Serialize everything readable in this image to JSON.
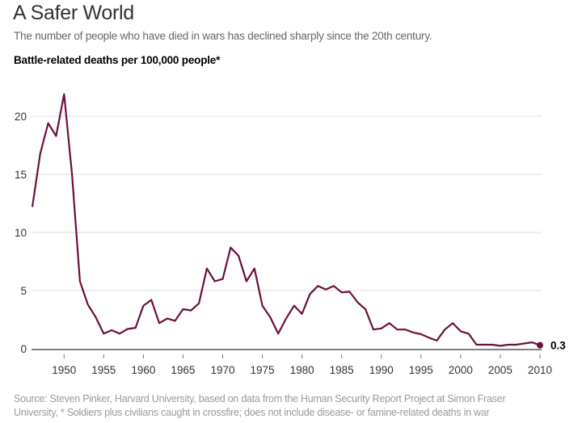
{
  "header": {
    "title": "A Safer World",
    "subtitle": "The number of people who have died in wars has declined sharply since the 20th century.",
    "measure_label": "Battle-related deaths per 100,000 people*"
  },
  "footer": {
    "source_line1": "Source: Steven Pinker, Harvard University, based on data from the Human Security Report Project at Simon Fraser",
    "source_line2": "University,  * Soldiers plus civilians caught in crossfire; does not include disease- or famine-related deaths in war"
  },
  "colors": {
    "line": "#6b0f3f",
    "grid": "#e8e8e8",
    "axis": "#555555"
  },
  "chart_data": {
    "type": "line",
    "title": "A Safer World",
    "subtitle": "The number of people who have died in wars has declined sharply since the 20th century.",
    "xlabel": "",
    "ylabel": "Battle-related deaths per 100,000 people*",
    "xlim": [
      1946,
      2010
    ],
    "ylim": [
      0,
      22
    ],
    "grid": true,
    "x_ticks": [
      1950,
      1955,
      1960,
      1965,
      1970,
      1975,
      1980,
      1985,
      1990,
      1995,
      2000,
      2005,
      2010
    ],
    "y_ticks": [
      0,
      5,
      10,
      15,
      20
    ],
    "end_annotation": "0.3",
    "series": [
      {
        "name": "Battle-related deaths per 100,000 people",
        "x": [
          1946,
          1947,
          1948,
          1949,
          1950,
          1951,
          1952,
          1953,
          1954,
          1955,
          1956,
          1957,
          1958,
          1959,
          1960,
          1961,
          1962,
          1963,
          1964,
          1965,
          1966,
          1967,
          1968,
          1969,
          1970,
          1971,
          1972,
          1973,
          1974,
          1975,
          1976,
          1977,
          1978,
          1979,
          1980,
          1981,
          1982,
          1983,
          1984,
          1985,
          1986,
          1987,
          1988,
          1989,
          1990,
          1991,
          1992,
          1993,
          1994,
          1995,
          1996,
          1997,
          1998,
          1999,
          2000,
          2001,
          2002,
          2003,
          2004,
          2005,
          2006,
          2007,
          2008,
          2009,
          2010
        ],
        "values": [
          12.2,
          16.8,
          19.4,
          18.3,
          21.9,
          15.0,
          5.8,
          3.8,
          2.7,
          1.3,
          1.6,
          1.3,
          1.7,
          1.8,
          3.7,
          4.2,
          2.2,
          2.6,
          2.4,
          3.4,
          3.3,
          3.9,
          6.9,
          5.8,
          6.0,
          8.7,
          8.0,
          5.8,
          6.9,
          3.7,
          2.7,
          1.3,
          2.6,
          3.7,
          3.0,
          4.7,
          5.4,
          5.1,
          5.4,
          4.85,
          4.9,
          4.0,
          3.4,
          1.65,
          1.75,
          2.2,
          1.65,
          1.65,
          1.4,
          1.25,
          0.95,
          0.7,
          1.65,
          2.2,
          1.5,
          1.3,
          0.35,
          0.35,
          0.35,
          0.25,
          0.35,
          0.35,
          0.45,
          0.55,
          0.3
        ]
      }
    ]
  }
}
